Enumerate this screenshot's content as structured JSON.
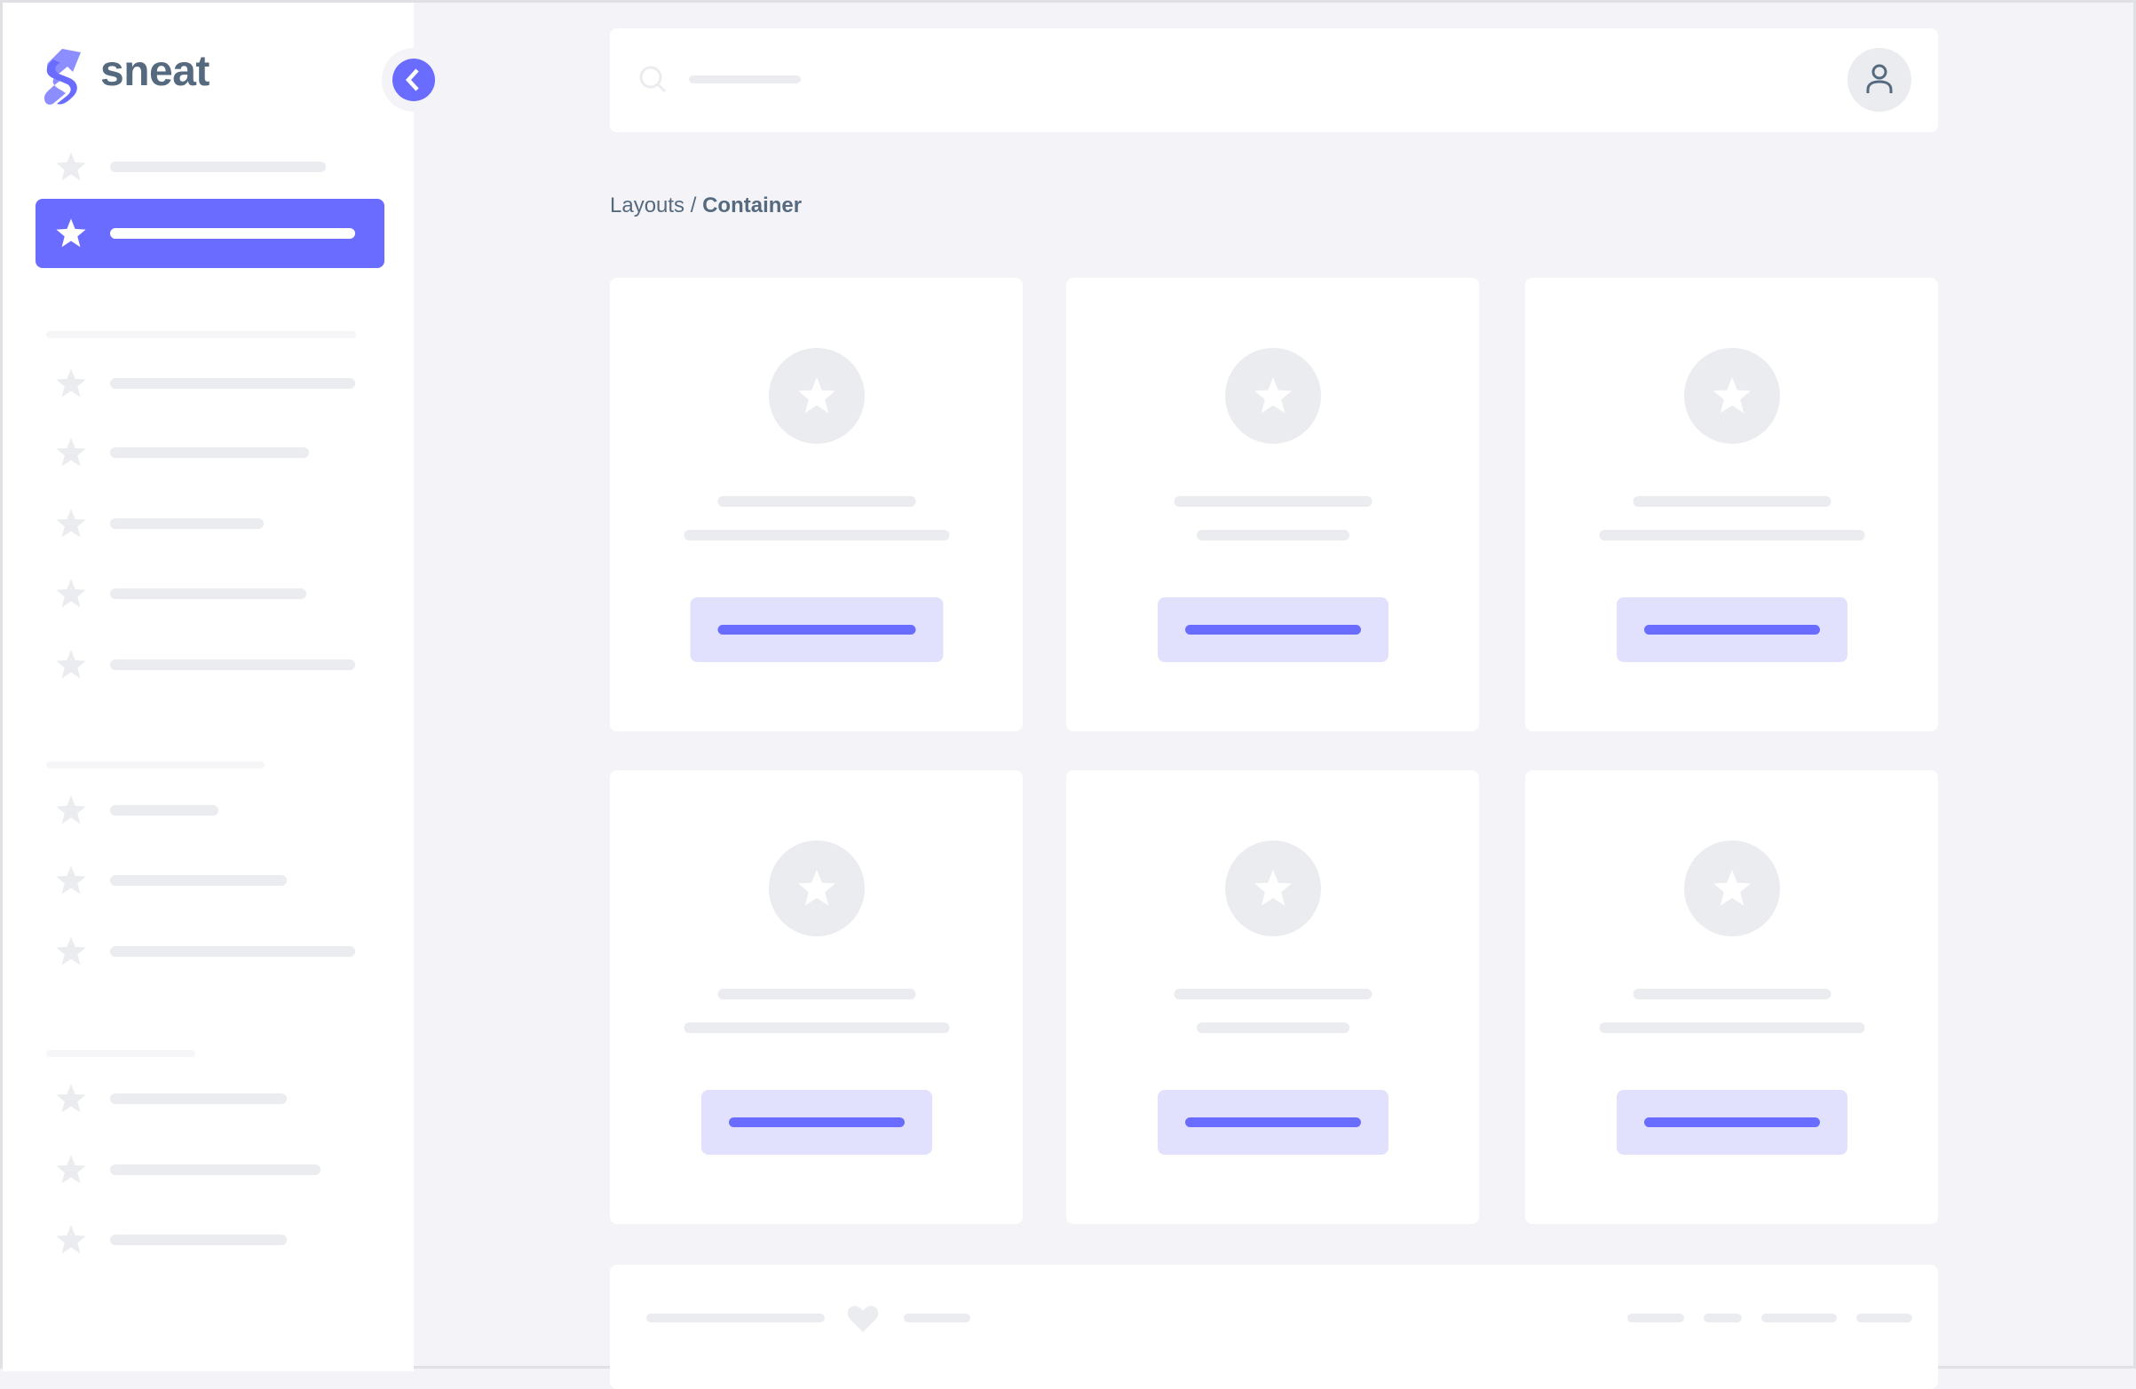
{
  "brand": {
    "name": "sneat",
    "accent": "#696cff",
    "text_color": "#566a7f"
  },
  "sidebar": {
    "collapse_icon": "chevron-left-icon",
    "items": [
      {
        "icon": "star-icon",
        "active": false
      },
      {
        "icon": "star-icon",
        "active": true
      },
      {
        "icon": "star-icon",
        "active": false
      },
      {
        "icon": "star-icon",
        "active": false
      },
      {
        "icon": "star-icon",
        "active": false
      },
      {
        "icon": "star-icon",
        "active": false
      },
      {
        "icon": "star-icon",
        "active": false
      },
      {
        "icon": "star-icon",
        "active": false
      },
      {
        "icon": "star-icon",
        "active": false
      },
      {
        "icon": "star-icon",
        "active": false
      },
      {
        "icon": "star-icon",
        "active": false
      },
      {
        "icon": "star-icon",
        "active": false
      },
      {
        "icon": "star-icon",
        "active": false
      }
    ]
  },
  "navbar": {
    "search_icon": "search-icon",
    "avatar_icon": "user-icon"
  },
  "breadcrumb": {
    "parent": "Layouts",
    "separator": "/",
    "current": "Container"
  },
  "cards": [
    {
      "icon": "star-icon"
    },
    {
      "icon": "star-icon"
    },
    {
      "icon": "star-icon"
    },
    {
      "icon": "star-icon"
    },
    {
      "icon": "star-icon"
    },
    {
      "icon": "star-icon"
    }
  ],
  "footer": {
    "icon": "heart-icon"
  }
}
